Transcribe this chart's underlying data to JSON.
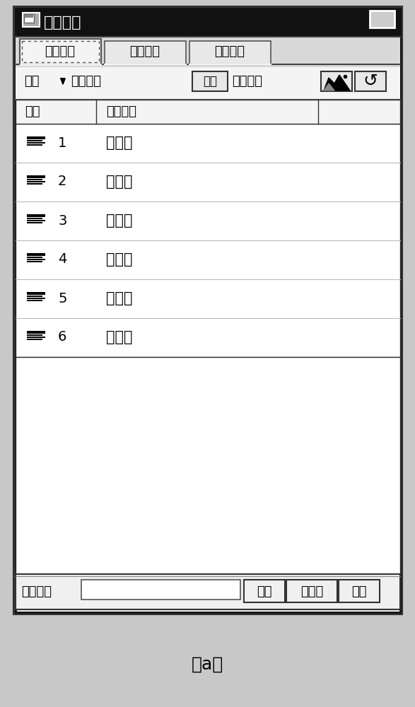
{
  "title": "注释环境",
  "caption": "（a）",
  "tab_labels": [
    "注释方向",
    "注释特征",
    "文本样式"
  ],
  "toolbar_label1": "平面",
  "toolbar_btn1": "注释平面",
  "toolbar_btn2": "反向",
  "toolbar_btn3": "方向参考",
  "col1_header": "序号",
  "col2_header": "视图名称",
  "rows": [
    {
      "num": "1",
      "name": "主视图"
    },
    {
      "num": "2",
      "name": "左视图"
    },
    {
      "num": "3",
      "name": "右视图"
    },
    {
      "num": "4",
      "name": "俯视图"
    },
    {
      "num": "5",
      "name": "仰视图"
    },
    {
      "num": "6",
      "name": "后视图"
    }
  ],
  "bottom_label": "方向名称",
  "bottom_btn1": "保存",
  "bottom_btn2": "主视图",
  "bottom_btn3": "移除",
  "fig_width": 5.87,
  "fig_height": 10.0,
  "dpi": 100
}
